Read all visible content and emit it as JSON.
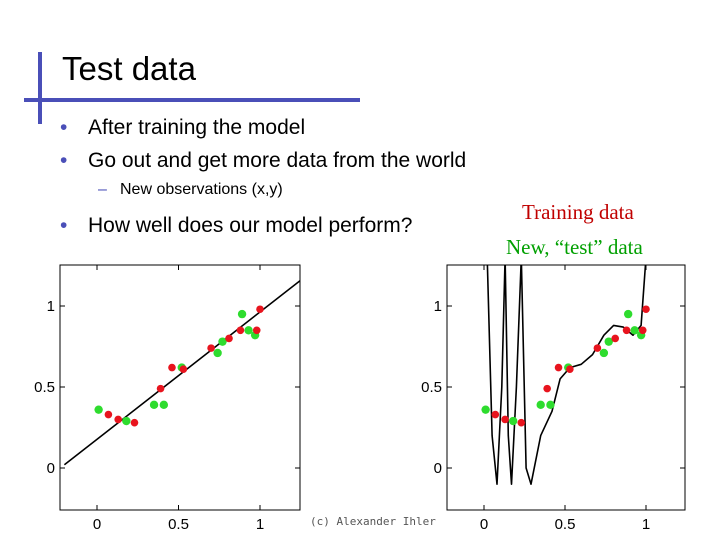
{
  "slide": {
    "title": "Test data",
    "bullets": [
      "After training the model",
      "Go out and get more data from the world"
    ],
    "sub_bullet": "New observations (x,y)",
    "bullet3": "How well does our model perform?",
    "bullet_marker": "•",
    "sub_marker": "–",
    "credit": "(c) Alexander Ihler"
  },
  "legend": {
    "training": {
      "label": "Training data",
      "color": "#c00000"
    },
    "test": {
      "label": "New, “test” data",
      "color": "#00a000"
    }
  },
  "colors": {
    "accent": "#4a4fb8",
    "train_point": "#e8141e",
    "test_point": "#2edc2e"
  },
  "chart_data": [
    {
      "type": "scatter",
      "title": "",
      "xlabel": "",
      "ylabel": "",
      "xlim": [
        -0.2,
        1.25
      ],
      "ylim": [
        -0.1,
        1.3
      ],
      "x_ticks": [
        "0",
        "0.5",
        "1"
      ],
      "y_ticks": [
        "0",
        "0.5",
        "1"
      ],
      "series": [
        {
          "kind": "train",
          "points": [
            [
              0.07,
              0.33
            ],
            [
              0.13,
              0.3
            ],
            [
              0.23,
              0.28
            ],
            [
              0.39,
              0.49
            ],
            [
              0.46,
              0.62
            ],
            [
              0.53,
              0.61
            ],
            [
              0.7,
              0.74
            ],
            [
              0.81,
              0.8
            ],
            [
              0.88,
              0.85
            ],
            [
              0.98,
              0.85
            ],
            [
              1.0,
              0.98
            ]
          ]
        },
        {
          "kind": "test",
          "points": [
            [
              0.01,
              0.36
            ],
            [
              0.18,
              0.29
            ],
            [
              0.35,
              0.39
            ],
            [
              0.41,
              0.39
            ],
            [
              0.52,
              0.62
            ],
            [
              0.74,
              0.71
            ],
            [
              0.77,
              0.78
            ],
            [
              0.89,
              0.95
            ],
            [
              0.93,
              0.85
            ],
            [
              0.97,
              0.82
            ]
          ]
        },
        {
          "kind": "fit",
          "points": [
            [
              -0.2,
              0.02
            ],
            [
              1.25,
              1.16
            ]
          ]
        }
      ]
    },
    {
      "type": "scatter",
      "title": "",
      "xlabel": "",
      "ylabel": "",
      "xlim": [
        -0.2,
        1.25
      ],
      "ylim": [
        -0.1,
        1.3
      ],
      "x_ticks": [
        "0",
        "0.5",
        "1"
      ],
      "y_ticks": [
        "0",
        "0.5",
        "1"
      ],
      "series": [
        {
          "kind": "train",
          "points": [
            [
              0.07,
              0.33
            ],
            [
              0.13,
              0.3
            ],
            [
              0.23,
              0.28
            ],
            [
              0.39,
              0.49
            ],
            [
              0.46,
              0.62
            ],
            [
              0.53,
              0.61
            ],
            [
              0.7,
              0.74
            ],
            [
              0.81,
              0.8
            ],
            [
              0.88,
              0.85
            ],
            [
              0.98,
              0.85
            ],
            [
              1.0,
              0.98
            ]
          ]
        },
        {
          "kind": "test",
          "points": [
            [
              0.01,
              0.36
            ],
            [
              0.18,
              0.29
            ],
            [
              0.35,
              0.39
            ],
            [
              0.41,
              0.39
            ],
            [
              0.52,
              0.62
            ],
            [
              0.74,
              0.71
            ],
            [
              0.77,
              0.78
            ],
            [
              0.89,
              0.95
            ],
            [
              0.93,
              0.85
            ],
            [
              0.97,
              0.82
            ]
          ]
        },
        {
          "kind": "fit",
          "points": [
            [
              0.02,
              1.3
            ],
            [
              0.05,
              0.2
            ],
            [
              0.08,
              -0.1
            ],
            [
              0.11,
              0.5
            ],
            [
              0.13,
              1.3
            ],
            [
              0.15,
              0.2
            ],
            [
              0.17,
              -0.1
            ],
            [
              0.2,
              0.5
            ],
            [
              0.23,
              1.3
            ],
            [
              0.26,
              0.0
            ],
            [
              0.29,
              -0.1
            ],
            [
              0.35,
              0.2
            ],
            [
              0.42,
              0.35
            ],
            [
              0.47,
              0.55
            ],
            [
              0.53,
              0.62
            ],
            [
              0.6,
              0.64
            ],
            [
              0.67,
              0.7
            ],
            [
              0.74,
              0.82
            ],
            [
              0.8,
              0.88
            ],
            [
              0.86,
              0.87
            ],
            [
              0.92,
              0.82
            ],
            [
              0.97,
              0.88
            ],
            [
              1.0,
              1.3
            ]
          ]
        }
      ]
    }
  ]
}
